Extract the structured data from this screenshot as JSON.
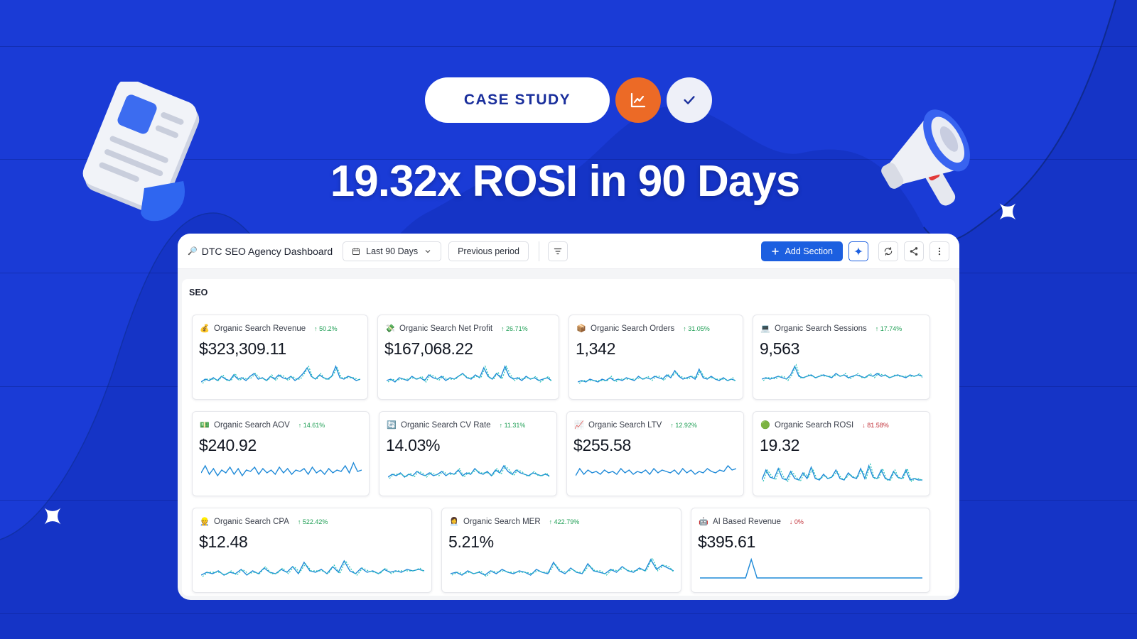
{
  "hero": {
    "badge": "CASE STUDY",
    "headline": "19.32x ROSI in 90 Days",
    "icons": [
      "chart-line-icon",
      "check-icon"
    ],
    "colors": {
      "background": "#1a3bd6",
      "badge_orange": "#ec6a26",
      "badge_light": "#eef0f8"
    }
  },
  "toolbar": {
    "title": "DTC SEO Agency Dashboard",
    "date_range": "Last 90 Days",
    "compare": "Previous period",
    "add_section": "Add Section",
    "icons": [
      "filter-icon",
      "sparkle-icon",
      "refresh-icon",
      "share-icon",
      "more-icon"
    ]
  },
  "section": {
    "title": "SEO",
    "cards": [
      {
        "label": "Organic Search Revenue",
        "emoji": "💰",
        "delta": "50.2%",
        "direction": "up",
        "value": "$323,309.11",
        "series": [
          3,
          5,
          4,
          6,
          4,
          7,
          5,
          4,
          8,
          5,
          6,
          4,
          7,
          9,
          5,
          6,
          4,
          7,
          5,
          8,
          6,
          5,
          7,
          4,
          6,
          9,
          13,
          7,
          5,
          8,
          6,
          5,
          7,
          14,
          6,
          5,
          7,
          6,
          4,
          5
        ],
        "style": "dotted"
      },
      {
        "label": "Organic Search Net Profit",
        "emoji": "💸",
        "delta": "26.71%",
        "direction": "up",
        "value": "$167,068.22",
        "series": [
          4,
          5,
          3,
          6,
          5,
          4,
          7,
          5,
          6,
          4,
          8,
          6,
          5,
          7,
          4,
          6,
          5,
          7,
          9,
          6,
          5,
          8,
          6,
          13,
          7,
          5,
          9,
          6,
          14,
          7,
          5,
          6,
          4,
          7,
          5,
          6,
          4,
          5,
          6,
          4
        ],
        "style": "dotted"
      },
      {
        "label": "Organic Search Orders",
        "emoji": "📦",
        "delta": "31.05%",
        "direction": "up",
        "value": "1,342",
        "series": [
          3,
          4,
          3,
          5,
          4,
          3,
          5,
          4,
          6,
          4,
          5,
          4,
          6,
          5,
          4,
          7,
          5,
          6,
          5,
          7,
          6,
          5,
          8,
          6,
          11,
          7,
          5,
          6,
          7,
          5,
          12,
          6,
          5,
          7,
          5,
          4,
          6,
          4,
          5,
          4
        ],
        "style": "dotted"
      },
      {
        "label": "Organic Search Sessions",
        "emoji": "💻",
        "delta": "17.74%",
        "direction": "up",
        "value": "9,563",
        "series": [
          5,
          6,
          5,
          6,
          7,
          6,
          5,
          8,
          14,
          7,
          6,
          7,
          8,
          6,
          7,
          8,
          7,
          6,
          9,
          7,
          8,
          6,
          7,
          8,
          7,
          6,
          8,
          7,
          9,
          7,
          8,
          6,
          7,
          8,
          7,
          6,
          8,
          7,
          8,
          7
        ],
        "style": "dotted"
      },
      {
        "label": "Organic Search AOV",
        "emoji": "💵",
        "delta": "14.61%",
        "direction": "up",
        "value": "$240.92",
        "series": [
          7,
          12,
          6,
          10,
          5,
          9,
          7,
          11,
          6,
          10,
          5,
          9,
          8,
          11,
          6,
          10,
          7,
          9,
          6,
          11,
          7,
          10,
          6,
          9,
          8,
          10,
          6,
          11,
          7,
          9,
          6,
          10,
          7,
          9,
          8,
          12,
          7,
          14,
          8,
          9
        ],
        "style": "solid"
      },
      {
        "label": "Organic Search CV Rate",
        "emoji": "🔄",
        "delta": "11.31%",
        "direction": "up",
        "value": "14.03%",
        "series": [
          4,
          6,
          5,
          7,
          4,
          6,
          5,
          8,
          6,
          5,
          7,
          5,
          6,
          8,
          5,
          7,
          6,
          9,
          5,
          7,
          6,
          10,
          7,
          6,
          8,
          5,
          9,
          7,
          12,
          8,
          6,
          9,
          7,
          6,
          5,
          7,
          6,
          5,
          6,
          5
        ],
        "style": "dotted"
      },
      {
        "label": "Organic Search LTV",
        "emoji": "📈",
        "delta": "12.92%",
        "direction": "up",
        "value": "$255.58",
        "series": [
          5,
          10,
          6,
          9,
          7,
          8,
          6,
          9,
          7,
          8,
          6,
          10,
          7,
          9,
          6,
          8,
          7,
          9,
          6,
          10,
          7,
          9,
          8,
          7,
          9,
          6,
          10,
          7,
          9,
          6,
          8,
          7,
          10,
          8,
          7,
          9,
          8,
          12,
          9,
          10
        ],
        "style": "solid"
      },
      {
        "label": "Organic Search ROSI",
        "emoji": "🟢",
        "delta": "81.58%",
        "direction": "down",
        "value": "19.32",
        "series": [
          2,
          9,
          4,
          3,
          10,
          3,
          2,
          8,
          3,
          2,
          7,
          3,
          11,
          3,
          2,
          6,
          3,
          4,
          9,
          3,
          2,
          7,
          4,
          3,
          10,
          3,
          12,
          4,
          3,
          9,
          3,
          2,
          8,
          4,
          3,
          9,
          2,
          3,
          2,
          2
        ],
        "style": "dotted"
      },
      {
        "label": "Organic Search CPA",
        "emoji": "👷",
        "delta": "522.42%",
        "direction": "up",
        "value": "$12.48",
        "series": [
          3,
          5,
          4,
          6,
          3,
          5,
          4,
          7,
          3,
          6,
          4,
          8,
          5,
          4,
          7,
          5,
          9,
          4,
          12,
          6,
          5,
          7,
          4,
          9,
          5,
          13,
          6,
          4,
          8,
          5,
          6,
          4,
          7,
          5,
          6,
          5,
          7,
          6,
          7,
          6
        ],
        "style": "dotted"
      },
      {
        "label": "Organic Search MER",
        "emoji": "👩‍💼",
        "delta": "422.79%",
        "direction": "up",
        "value": "5.21%",
        "series": [
          4,
          5,
          3,
          6,
          4,
          5,
          3,
          6,
          4,
          7,
          5,
          4,
          6,
          5,
          3,
          7,
          5,
          4,
          12,
          6,
          4,
          8,
          5,
          4,
          11,
          6,
          5,
          4,
          7,
          5,
          9,
          6,
          5,
          8,
          6,
          14,
          7,
          10,
          8,
          6
        ],
        "style": "dotted"
      },
      {
        "label": "AI Based Revenue",
        "emoji": "🤖",
        "delta": "0%",
        "direction": "down",
        "value": "$395.61",
        "series": [
          1,
          1,
          1,
          1,
          1,
          1,
          1,
          1,
          1,
          1,
          1,
          1,
          1,
          1,
          1,
          1,
          1,
          1,
          1,
          1,
          1,
          1,
          1,
          1,
          1,
          1,
          1,
          1,
          1,
          1,
          1,
          1,
          1,
          1,
          1,
          1,
          1,
          1,
          1,
          1
        ],
        "spike_at": 9,
        "spike": 14,
        "style": "solid"
      }
    ]
  }
}
